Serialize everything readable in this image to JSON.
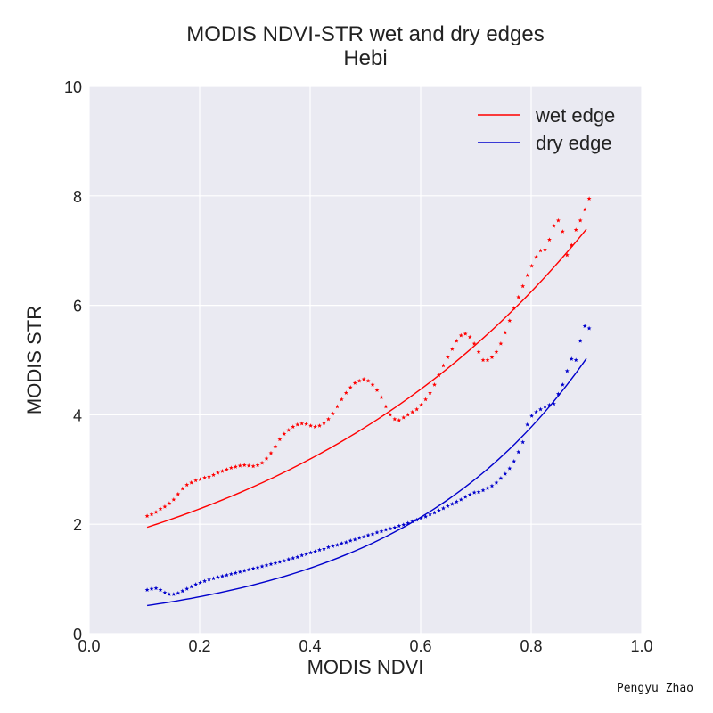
{
  "chart_data": {
    "type": "scatter",
    "title": "MODIS NDVI-STR wet and dry edges",
    "subtitle": "Hebi",
    "xlabel": "MODIS NDVI",
    "ylabel": "MODIS STR",
    "xlim": [
      0.0,
      1.0
    ],
    "ylim": [
      0,
      10
    ],
    "xticks": [
      "0.0",
      "0.2",
      "0.4",
      "0.6",
      "0.8",
      "1.0"
    ],
    "yticks": [
      "0",
      "2",
      "4",
      "6",
      "8",
      "10"
    ],
    "grid": true,
    "legend_position": "top-right",
    "colors": {
      "wet": "#ff0000",
      "dry": "#0000cc",
      "background": "#eaeaf2",
      "grid": "#ffffff"
    },
    "fit_lines": [
      {
        "name": "wet edge",
        "color": "#ff0000",
        "x": [
          0.105,
          0.9
        ],
        "a": 1.63,
        "b": 1.68
      },
      {
        "name": "dry edge",
        "color": "#0000cc",
        "x": [
          0.105,
          0.9
        ],
        "a": 0.38,
        "b": 2.87
      }
    ],
    "series": [
      {
        "key": "wet_points",
        "color": "#ff0000",
        "marker": "star",
        "x": [
          0.105,
          0.113,
          0.121,
          0.129,
          0.137,
          0.145,
          0.153,
          0.161,
          0.169,
          0.177,
          0.185,
          0.193,
          0.201,
          0.209,
          0.217,
          0.225,
          0.233,
          0.241,
          0.249,
          0.257,
          0.265,
          0.273,
          0.281,
          0.289,
          0.297,
          0.305,
          0.313,
          0.321,
          0.329,
          0.337,
          0.345,
          0.353,
          0.361,
          0.369,
          0.377,
          0.385,
          0.393,
          0.401,
          0.409,
          0.417,
          0.425,
          0.433,
          0.441,
          0.449,
          0.457,
          0.465,
          0.473,
          0.481,
          0.489,
          0.497,
          0.505,
          0.513,
          0.521,
          0.529,
          0.537,
          0.545,
          0.553,
          0.561,
          0.569,
          0.577,
          0.585,
          0.593,
          0.601,
          0.609,
          0.617,
          0.625,
          0.633,
          0.641,
          0.649,
          0.657,
          0.665,
          0.673,
          0.681,
          0.689,
          0.697,
          0.705,
          0.713,
          0.721,
          0.729,
          0.737,
          0.745,
          0.753,
          0.761,
          0.769,
          0.777,
          0.785,
          0.793,
          0.801,
          0.809,
          0.817,
          0.825,
          0.833,
          0.841,
          0.849,
          0.857,
          0.865,
          0.873,
          0.881,
          0.889,
          0.897,
          0.905
        ],
        "y": [
          2.15,
          2.18,
          2.22,
          2.28,
          2.32,
          2.38,
          2.45,
          2.55,
          2.65,
          2.72,
          2.76,
          2.8,
          2.82,
          2.85,
          2.87,
          2.9,
          2.94,
          2.97,
          3.0,
          3.03,
          3.05,
          3.07,
          3.08,
          3.07,
          3.06,
          3.08,
          3.12,
          3.2,
          3.3,
          3.42,
          3.55,
          3.65,
          3.72,
          3.78,
          3.82,
          3.84,
          3.83,
          3.8,
          3.78,
          3.8,
          3.85,
          3.92,
          4.02,
          4.15,
          4.28,
          4.4,
          4.5,
          4.58,
          4.62,
          4.65,
          4.62,
          4.55,
          4.45,
          4.32,
          4.15,
          4.0,
          3.92,
          3.9,
          3.95,
          4.0,
          4.05,
          4.1,
          4.18,
          4.28,
          4.4,
          4.55,
          4.72,
          4.9,
          5.05,
          5.2,
          5.35,
          5.45,
          5.48,
          5.42,
          5.3,
          5.15,
          5.0,
          5.0,
          5.05,
          5.15,
          5.3,
          5.5,
          5.72,
          5.95,
          6.15,
          6.35,
          6.55,
          6.72,
          6.88,
          7.0,
          7.02,
          7.2,
          7.45,
          7.55,
          7.35,
          6.92,
          7.1,
          7.38,
          7.55,
          7.75,
          7.95
        ]
      },
      {
        "key": "dry_points",
        "color": "#0000cc",
        "marker": "star",
        "x": [
          0.105,
          0.113,
          0.121,
          0.129,
          0.137,
          0.145,
          0.153,
          0.161,
          0.169,
          0.177,
          0.185,
          0.193,
          0.201,
          0.209,
          0.217,
          0.225,
          0.233,
          0.241,
          0.249,
          0.257,
          0.265,
          0.273,
          0.281,
          0.289,
          0.297,
          0.305,
          0.313,
          0.321,
          0.329,
          0.337,
          0.345,
          0.353,
          0.361,
          0.369,
          0.377,
          0.385,
          0.393,
          0.401,
          0.409,
          0.417,
          0.425,
          0.433,
          0.441,
          0.449,
          0.457,
          0.465,
          0.473,
          0.481,
          0.489,
          0.497,
          0.505,
          0.513,
          0.521,
          0.529,
          0.537,
          0.545,
          0.553,
          0.561,
          0.569,
          0.577,
          0.585,
          0.593,
          0.601,
          0.609,
          0.617,
          0.625,
          0.633,
          0.641,
          0.649,
          0.657,
          0.665,
          0.673,
          0.681,
          0.689,
          0.697,
          0.705,
          0.713,
          0.721,
          0.729,
          0.737,
          0.745,
          0.753,
          0.761,
          0.769,
          0.777,
          0.785,
          0.793,
          0.801,
          0.809,
          0.817,
          0.825,
          0.833,
          0.841,
          0.849,
          0.857,
          0.865,
          0.873,
          0.881,
          0.889,
          0.897,
          0.905
        ],
        "y": [
          0.8,
          0.82,
          0.83,
          0.8,
          0.75,
          0.72,
          0.72,
          0.74,
          0.78,
          0.82,
          0.86,
          0.9,
          0.93,
          0.96,
          0.99,
          1.01,
          1.03,
          1.05,
          1.07,
          1.09,
          1.11,
          1.13,
          1.15,
          1.17,
          1.19,
          1.21,
          1.23,
          1.25,
          1.27,
          1.29,
          1.31,
          1.33,
          1.36,
          1.38,
          1.4,
          1.43,
          1.45,
          1.48,
          1.5,
          1.53,
          1.55,
          1.58,
          1.6,
          1.62,
          1.65,
          1.67,
          1.7,
          1.72,
          1.75,
          1.77,
          1.8,
          1.82,
          1.85,
          1.87,
          1.9,
          1.92,
          1.94,
          1.97,
          1.99,
          2.02,
          2.05,
          2.08,
          2.11,
          2.14,
          2.18,
          2.21,
          2.25,
          2.29,
          2.33,
          2.37,
          2.41,
          2.45,
          2.5,
          2.54,
          2.58,
          2.59,
          2.62,
          2.66,
          2.7,
          2.76,
          2.84,
          2.92,
          3.02,
          3.15,
          3.32,
          3.5,
          3.82,
          3.98,
          4.05,
          4.1,
          4.15,
          4.18,
          4.2,
          4.38,
          4.55,
          4.8,
          5.02,
          5.0,
          5.35,
          5.62,
          5.58
        ]
      }
    ],
    "legend": [
      {
        "label": "wet edge"
      },
      {
        "label": "dry edge"
      }
    ]
  },
  "credit": "Pengyu Zhao"
}
